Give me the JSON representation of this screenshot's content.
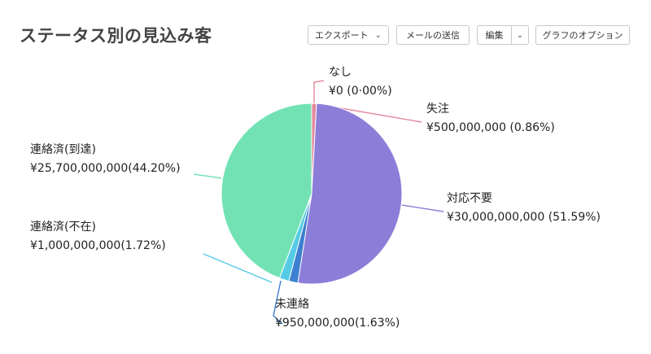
{
  "header": {
    "title": "ステータス別の見込み客",
    "export_label": "エクスポート",
    "send_mail_label": "メールの送信",
    "edit_label": "編集",
    "chart_options_label": "グラフのオプション"
  },
  "chart_data": {
    "type": "pie",
    "title": "ステータス別の見込み客",
    "slices": [
      {
        "name": "なし",
        "value": 0,
        "label": "¥0 (0·00%)",
        "percent": 0.0,
        "color": "#e4889c"
      },
      {
        "name": "失注",
        "value": 500000000,
        "label": "¥500,000,000 (0.86%)",
        "percent": 0.86,
        "color": "#e4889c"
      },
      {
        "name": "対応不要",
        "value": 30000000000,
        "label": "¥30,000,000,000 (51.59%)",
        "percent": 51.59,
        "color": "#8c7ed8"
      },
      {
        "name": "未連絡",
        "value": 950000000,
        "label": "¥950,000,000(1.63%)",
        "percent": 1.63,
        "color": "#3d7fd0"
      },
      {
        "name": "連絡済(不在)",
        "value": 1000000000,
        "label": "¥1,000,000,000(1.72%)",
        "percent": 1.72,
        "color": "#55cbe5"
      },
      {
        "name": "連絡済(到達)",
        "value": 25700000000,
        "label": "¥25,700,000,000(44.20%)",
        "percent": 44.2,
        "color": "#72e2b4"
      }
    ]
  }
}
